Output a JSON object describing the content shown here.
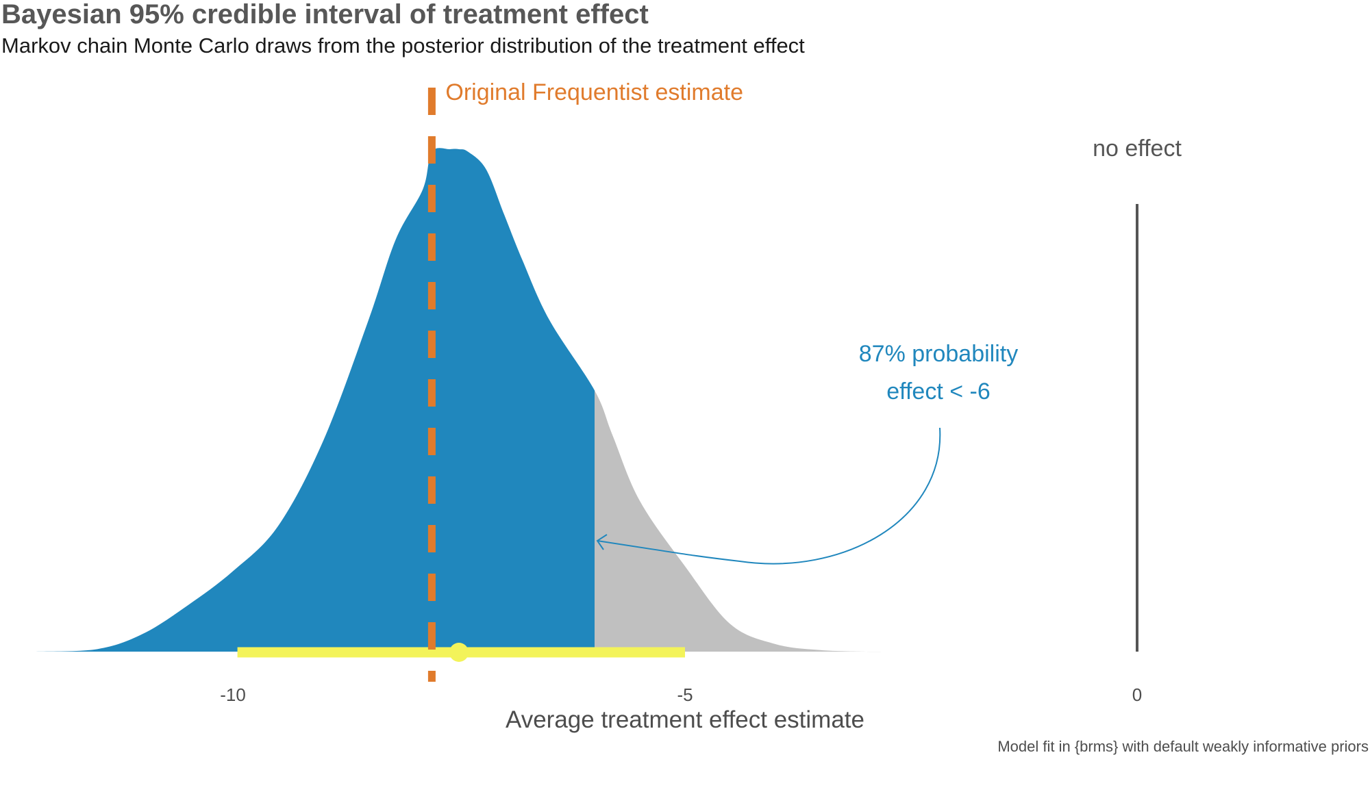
{
  "chart_data": {
    "type": "area",
    "title": "Bayesian 95% credible interval of treatment effect",
    "subtitle": "Markov chain Monte Carlo draws from the posterior distribution of the treatment effect",
    "xlabel": "Average treatment effect estimate",
    "ylabel": "",
    "caption": "Model fit in {brms} with default weakly informative priors",
    "xlim": [
      -12.2,
      0.6
    ],
    "x_ticks": [
      -10,
      -5,
      0
    ],
    "x_tick_labels": [
      "-10",
      "-5",
      "0"
    ],
    "grid": false,
    "density": {
      "x": [
        -12.2,
        -11.5,
        -11.0,
        -10.5,
        -10.0,
        -9.5,
        -9.0,
        -8.5,
        -8.2,
        -7.9,
        -7.8,
        -7.6,
        -7.5,
        -7.4,
        -7.2,
        -7.0,
        -6.8,
        -6.5,
        -6.0,
        -5.8,
        -5.5,
        -5.0,
        -4.5,
        -4.0,
        -3.5,
        -3.0,
        -2.8
      ],
      "y": [
        0.0,
        0.005,
        0.035,
        0.092,
        0.16,
        0.25,
        0.42,
        0.66,
        0.82,
        0.92,
        0.995,
        1.0,
        1.0,
        0.995,
        0.96,
        0.87,
        0.78,
        0.66,
        0.52,
        0.43,
        0.3,
        0.17,
        0.055,
        0.015,
        0.003,
        0.0,
        0.0
      ]
    },
    "shade_threshold": -6,
    "shade_color_below": "#2087bd",
    "shade_color_above": "#c0c0c0",
    "credible_interval": {
      "lower": -9.95,
      "upper": -5.0,
      "point_estimate": -7.5,
      "color": "#f3f35a"
    },
    "frequentist_estimate": {
      "value": -7.8,
      "label": "Original Frequentist estimate",
      "color": "#e07b2c"
    },
    "no_effect_line": {
      "value": 0,
      "label": "no effect",
      "color": "#555555"
    },
    "annotation": {
      "lines": [
        "87% probability",
        "effect < -6"
      ],
      "color": "#2087bd",
      "points_to": -6
    }
  }
}
